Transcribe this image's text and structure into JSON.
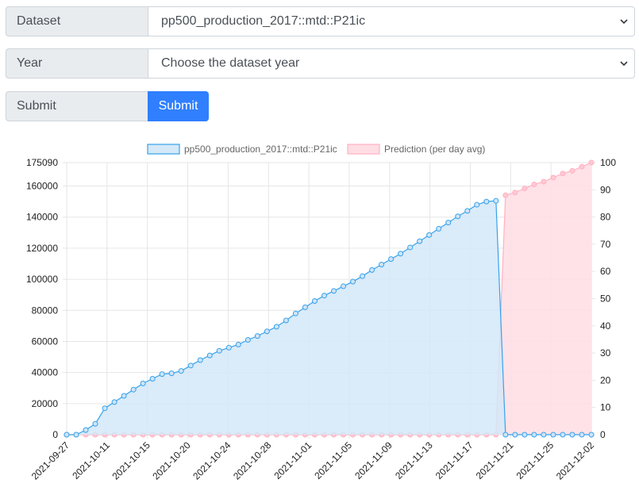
{
  "form": {
    "dataset_label": "Dataset",
    "dataset_value": "pp500_production_2017::mtd::P21ic",
    "year_label": "Year",
    "year_value": "Choose the dataset year",
    "submit_label": "Submit",
    "submit_button": "Submit"
  },
  "colors": {
    "series_stroke": "#36a2eb",
    "series_fill": "#d4e8f8",
    "prediction_stroke": "#ffb1c1",
    "prediction_fill": "#ffdde4",
    "button": "#2f7fff"
  },
  "chart_data": {
    "type": "area",
    "legend_position": "top",
    "grid": true,
    "x_tick_labels": [
      "2021-09-27",
      "2021-10-11",
      "2021-10-15",
      "2021-10-20",
      "2021-10-24",
      "2021-10-28",
      "2021-11-01",
      "2021-11-05",
      "2021-11-09",
      "2021-11-13",
      "2021-11-17",
      "2021-11-21",
      "2021-11-25",
      "2021-12-02"
    ],
    "y_left_ticks": [
      "0",
      "20000",
      "40000",
      "60000",
      "80000",
      "100000",
      "120000",
      "140000",
      "160000",
      "175090"
    ],
    "y_left_range": [
      0,
      175090
    ],
    "y_right_ticks": [
      "0",
      "10",
      "20",
      "30",
      "40",
      "50",
      "60",
      "70",
      "80",
      "90",
      "100"
    ],
    "y_right_range": [
      0,
      100
    ],
    "n_points": 56,
    "series": [
      {
        "name": "pp500_production_2017::mtd::P21ic",
        "axis": "left",
        "values": [
          0,
          0,
          3000,
          7000,
          17000,
          21000,
          25000,
          29000,
          33000,
          36000,
          39000,
          39500,
          41000,
          44500,
          48000,
          51000,
          54000,
          56000,
          58000,
          61000,
          63500,
          66500,
          69500,
          73500,
          78000,
          82000,
          86000,
          89500,
          92500,
          95500,
          98500,
          102000,
          106000,
          109500,
          113000,
          116500,
          120500,
          124500,
          128500,
          132500,
          136500,
          140500,
          144000,
          148000,
          150000,
          150500,
          0,
          0,
          0,
          0,
          0,
          0,
          0,
          0,
          0,
          0
        ]
      },
      {
        "name": "Prediction (per day avg)",
        "axis": "right",
        "values": [
          0,
          0,
          0,
          0,
          0,
          0,
          0,
          0,
          0,
          0,
          0,
          0,
          0,
          0,
          0,
          0,
          0,
          0,
          0,
          0,
          0,
          0,
          0,
          0,
          0,
          0,
          0,
          0,
          0,
          0,
          0,
          0,
          0,
          0,
          0,
          0,
          0,
          0,
          0,
          0,
          0,
          0,
          0,
          0,
          0,
          0,
          88,
          89,
          90.5,
          92,
          93,
          94.5,
          96,
          97,
          98.5,
          100
        ]
      }
    ]
  }
}
